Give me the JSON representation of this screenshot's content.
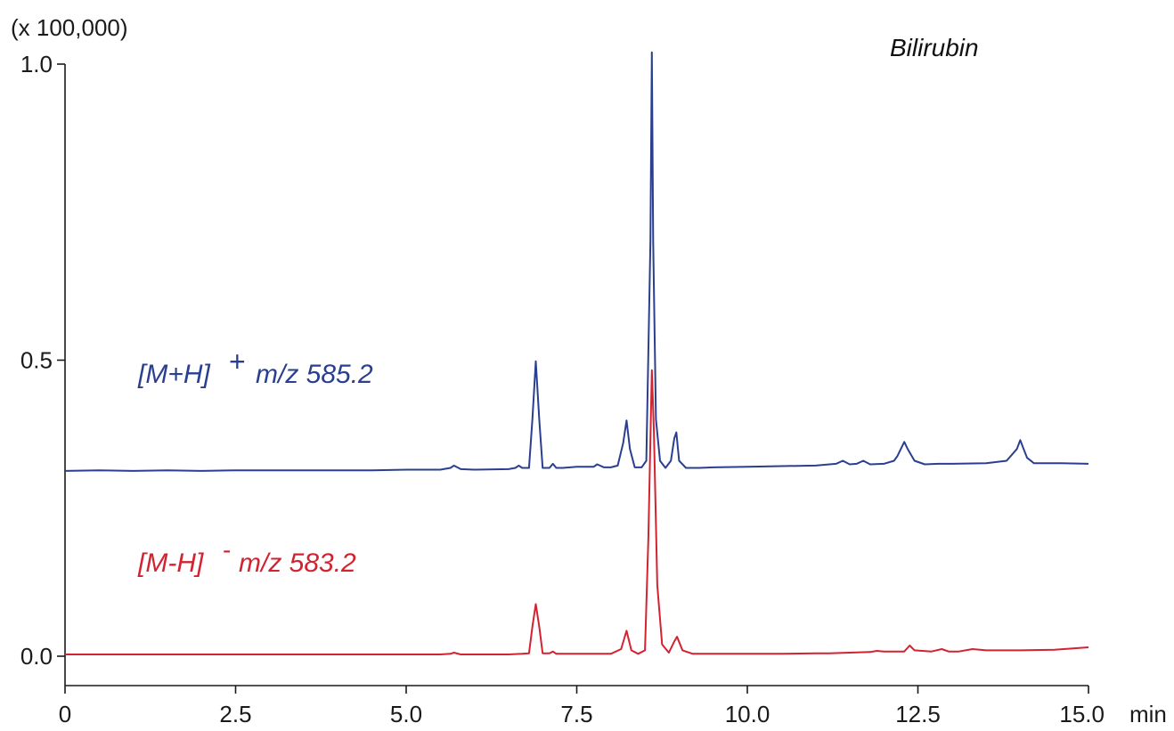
{
  "chart_data": {
    "type": "line",
    "title": "Bilirubin",
    "y_scale_label": "(x 100,000)",
    "x_unit": "min",
    "xlim": [
      0,
      15.0
    ],
    "ylim": [
      -0.05,
      1.0
    ],
    "x_ticks": [
      {
        "value": 0,
        "label": "0"
      },
      {
        "value": 2.5,
        "label": "2.5"
      },
      {
        "value": 5.0,
        "label": "5.0"
      },
      {
        "value": 7.5,
        "label": "7.5"
      },
      {
        "value": 10.0,
        "label": "10.0"
      },
      {
        "value": 12.5,
        "label": "12.5"
      },
      {
        "value": 15.0,
        "label": "15.0"
      }
    ],
    "y_ticks": [
      {
        "value": 0.0,
        "label": "0.0"
      },
      {
        "value": 0.5,
        "label": "0.5"
      },
      {
        "value": 1.0,
        "label": "1.0"
      }
    ],
    "grid": false,
    "series": [
      {
        "label_prefix": "[M+H]",
        "label_charge": "+",
        "label_mz": "m/z 585.2",
        "color": "#2a3f8f",
        "x": [
          0,
          0.5,
          1.0,
          1.5,
          2.0,
          2.5,
          3.0,
          3.5,
          4.0,
          4.5,
          5.0,
          5.5,
          5.65,
          5.7,
          5.8,
          6.0,
          6.5,
          6.6,
          6.65,
          6.7,
          6.8,
          6.85,
          6.9,
          6.95,
          7.0,
          7.1,
          7.15,
          7.2,
          7.3,
          7.5,
          7.75,
          7.8,
          7.9,
          8.0,
          8.1,
          8.18,
          8.23,
          8.28,
          8.35,
          8.45,
          8.52,
          8.58,
          8.6,
          8.62,
          8.66,
          8.72,
          8.8,
          8.88,
          8.93,
          8.96,
          9.0,
          9.1,
          9.3,
          9.5,
          10.0,
          10.5,
          11.0,
          11.3,
          11.4,
          11.5,
          11.6,
          11.7,
          11.8,
          12.0,
          12.15,
          12.2,
          12.25,
          12.3,
          12.35,
          12.45,
          12.6,
          12.8,
          13.0,
          13.5,
          13.8,
          13.95,
          14.0,
          14.05,
          14.1,
          14.2,
          14.4,
          14.6,
          15.0
        ],
        "y": [
          0.313,
          0.314,
          0.313,
          0.314,
          0.313,
          0.314,
          0.314,
          0.314,
          0.314,
          0.314,
          0.315,
          0.315,
          0.318,
          0.322,
          0.316,
          0.315,
          0.316,
          0.318,
          0.322,
          0.318,
          0.318,
          0.4,
          0.498,
          0.4,
          0.318,
          0.318,
          0.325,
          0.318,
          0.318,
          0.32,
          0.32,
          0.324,
          0.319,
          0.319,
          0.322,
          0.36,
          0.398,
          0.35,
          0.319,
          0.319,
          0.33,
          0.7,
          1.02,
          0.7,
          0.4,
          0.33,
          0.318,
          0.33,
          0.368,
          0.378,
          0.33,
          0.318,
          0.318,
          0.319,
          0.32,
          0.321,
          0.322,
          0.325,
          0.33,
          0.324,
          0.325,
          0.33,
          0.324,
          0.325,
          0.33,
          0.338,
          0.35,
          0.362,
          0.35,
          0.33,
          0.324,
          0.325,
          0.325,
          0.326,
          0.33,
          0.35,
          0.365,
          0.35,
          0.335,
          0.326,
          0.326,
          0.326,
          0.325
        ]
      },
      {
        "label_prefix": "[M-H]",
        "label_charge": "-",
        "label_mz": "m/z 583.2",
        "color": "#d32230",
        "x": [
          0,
          0.5,
          1.0,
          1.5,
          2.0,
          2.5,
          3.0,
          3.5,
          4.0,
          4.5,
          5.0,
          5.5,
          5.65,
          5.7,
          5.8,
          6.0,
          6.5,
          6.7,
          6.8,
          6.85,
          6.9,
          6.95,
          7.0,
          7.1,
          7.15,
          7.2,
          7.5,
          8.0,
          8.15,
          8.23,
          8.3,
          8.4,
          8.5,
          8.55,
          8.6,
          8.63,
          8.68,
          8.75,
          8.85,
          8.93,
          8.97,
          9.05,
          9.2,
          9.5,
          10.0,
          10.5,
          11.0,
          11.2,
          11.5,
          11.8,
          11.9,
          12.0,
          12.3,
          12.38,
          12.45,
          12.7,
          12.85,
          12.95,
          13.1,
          13.3,
          13.5,
          14.0,
          14.5,
          15.0
        ],
        "y": [
          0.003,
          0.003,
          0.003,
          0.003,
          0.003,
          0.003,
          0.003,
          0.003,
          0.003,
          0.003,
          0.003,
          0.003,
          0.004,
          0.006,
          0.003,
          0.003,
          0.003,
          0.004,
          0.005,
          0.05,
          0.088,
          0.05,
          0.005,
          0.005,
          0.008,
          0.004,
          0.004,
          0.004,
          0.012,
          0.043,
          0.01,
          0.004,
          0.01,
          0.2,
          0.483,
          0.38,
          0.12,
          0.02,
          0.006,
          0.025,
          0.033,
          0.01,
          0.004,
          0.004,
          0.004,
          0.004,
          0.005,
          0.005,
          0.006,
          0.007,
          0.009,
          0.008,
          0.008,
          0.018,
          0.01,
          0.008,
          0.012,
          0.008,
          0.008,
          0.012,
          0.01,
          0.01,
          0.011,
          0.015
        ]
      }
    ]
  }
}
